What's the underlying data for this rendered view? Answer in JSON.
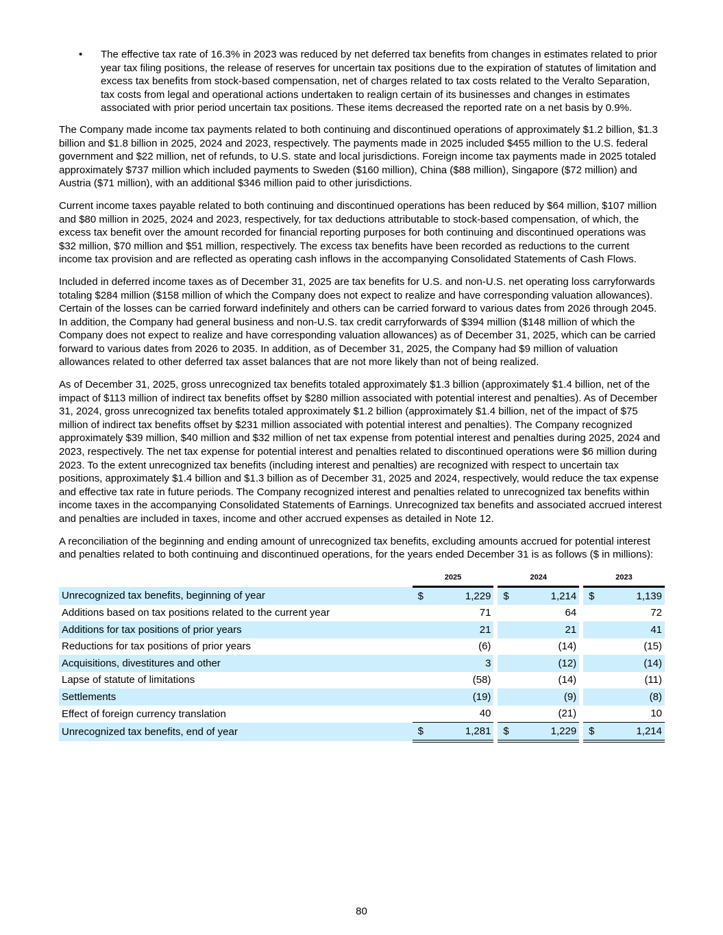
{
  "bullet": "The effective tax rate of 16.3% in 2023 was reduced by net deferred tax benefits from changes in estimates related to prior year tax filing positions, the release of reserves for uncertain tax positions due to the expiration of statutes of limitation and excess tax benefits from stock-based compensation, net of charges related to tax costs related to the Veralto Separation, tax costs from legal and operational actions undertaken to realign certain of its businesses and changes in estimates associated with prior period uncertain tax positions.  These items decreased the reported rate on a net basis by 0.9%.",
  "bullet_symbol": "•",
  "paragraphs": [
    "The Company made income tax payments related to both continuing and discontinued operations of approximately $1.2 billion, $1.3 billion and $1.8 billion in 2025, 2024 and 2023, respectively.  The payments made in 2025 included $455 million to the U.S. federal government and $22 million, net of refunds, to U.S. state and local jurisdictions.  Foreign income tax payments made in 2025 totaled approximately $737 million which included payments to Sweden ($160 million), China ($88 million), Singapore ($72 million) and Austria ($71 million), with an additional $346 million paid to other jurisdictions.",
    "Current income taxes payable related to both continuing and discontinued operations has been reduced by $64 million, $107 million and $80 million in 2025, 2024 and 2023, respectively, for tax deductions attributable to stock-based compensation, of which, the excess tax benefit over the amount recorded for financial reporting purposes for both continuing and discontinued operations was $32 million, $70 million and $51 million, respectively.  The excess tax benefits have been recorded as reductions to the current income tax provision and are reflected as operating cash inflows in the accompanying Consolidated Statements of Cash Flows.",
    "Included in deferred income taxes as of December 31, 2025 are tax benefits for U.S. and non-U.S. net operating loss carryforwards totaling $284 million ($158 million of which the Company does not expect to realize and have corresponding valuation allowances).  Certain of the losses can be carried forward indefinitely and others can be carried forward to various dates from 2026 through 2045.  In addition, the Company had general business and non-U.S. tax credit carryforwards of $394 million ($148 million of which the Company does not expect to realize and have corresponding valuation allowances) as of December 31, 2025, which can be carried forward to various dates from 2026 to 2035.  In addition, as of December 31, 2025, the Company had $9 million of valuation allowances related to other deferred tax asset balances that are not more likely than not of being realized.",
    "As of December 31, 2025, gross unrecognized tax benefits totaled approximately $1.3 billion (approximately $1.4 billion, net of the impact of $113 million of indirect tax benefits offset by $280 million associated with potential interest and penalties).  As of December 31, 2024, gross unrecognized tax benefits totaled approximately $1.2 billion (approximately $1.4 billion, net of the impact of $75 million of indirect tax benefits offset by $231 million associated with potential interest and penalties).  The Company recognized approximately $39 million, $40 million and $32 million of net tax expense from potential interest and penalties during 2025, 2024 and 2023, respectively.  The net tax expense for potential interest and penalties related to discontinued operations were $6 million during 2023.  To the extent unrecognized tax benefits (including interest and penalties) are recognized with respect to uncertain tax positions, approximately $1.4 billion and $1.3 billion as of December 31, 2025 and 2024, respectively, would reduce the tax expense and effective tax rate in future periods.  The Company recognized interest and penalties related to unrecognized tax benefits within income taxes in the accompanying Consolidated Statements of Earnings.  Unrecognized tax benefits and associated accrued interest and penalties are included in taxes, income and other accrued expenses as detailed in Note 12.",
    "A reconciliation of the beginning and ending amount of unrecognized tax benefits, excluding amounts accrued for potential interest and penalties related to both continuing and discontinued operations, for the years ended December 31 is as follows ($ in millions):"
  ],
  "table": {
    "years": [
      "2025",
      "2024",
      "2023"
    ],
    "currency": "$",
    "shade_color": "#cdeefc",
    "rows": [
      {
        "label": "Unrecognized tax benefits, beginning of year",
        "values": [
          "1,229",
          "1,214",
          "1,139"
        ],
        "currency": true
      },
      {
        "label": "Additions based on tax positions related to the current year",
        "values": [
          "71",
          "64",
          "72"
        ]
      },
      {
        "label": "Additions for tax positions of prior years",
        "values": [
          "21",
          "21",
          "41"
        ]
      },
      {
        "label": "Reductions for tax positions of prior years",
        "values": [
          "(6)",
          "(14)",
          "(15)"
        ]
      },
      {
        "label": "Acquisitions, divestitures and other",
        "values": [
          "3",
          "(12)",
          "(14)"
        ]
      },
      {
        "label": "Lapse of statute of limitations",
        "values": [
          "(58)",
          "(14)",
          "(11)"
        ]
      },
      {
        "label": "Settlements",
        "values": [
          "(19)",
          "(9)",
          "(8)"
        ]
      },
      {
        "label": "Effect of foreign currency translation",
        "values": [
          "40",
          "(21)",
          "10"
        ]
      },
      {
        "label": "Unrecognized tax benefits, end of year",
        "values": [
          "1,281",
          "1,229",
          "1,214"
        ],
        "currency": true,
        "total": true
      }
    ]
  },
  "page_number": "80"
}
